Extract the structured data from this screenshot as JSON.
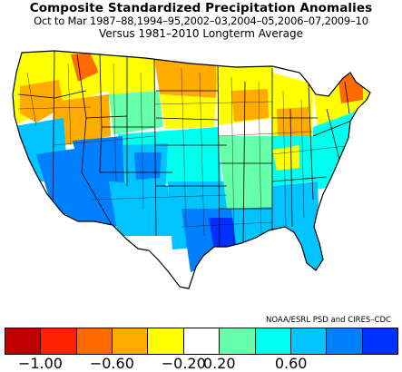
{
  "title": "Composite Standardized Precipitation Anomalies",
  "period": "Oct to Mar  1987–88,1994–95,2002–03,2004–05,2006–07,2009–10",
  "comparison": "Versus 1981–2010 Longterm Average",
  "credit": "NOAA/ESRL PSD and CIRES–CDC",
  "colorbar": {
    "colors": [
      "#c00000",
      "#ff2000",
      "#ff6a00",
      "#ffab00",
      "#ffff00",
      "#ffffff",
      "#66ffaa",
      "#00ffee",
      "#00c4ff",
      "#0080ff",
      "#0030ff"
    ],
    "tick_labels": [
      "−1.00",
      "−0.60",
      "−0.20",
      "0.20",
      "0.60"
    ]
  },
  "map": {
    "region": "Contiguous United States",
    "units": "climate divisions",
    "drier_regions": [
      "Pacific Northwest",
      "Northern Rockies",
      "Ohio Valley",
      "Great Lakes",
      "Maine"
    ],
    "wetter_regions": [
      "Southwest",
      "Southern Plains",
      "Texas",
      "Gulf Coast",
      "Florida",
      "Mid-Atlantic"
    ]
  }
}
